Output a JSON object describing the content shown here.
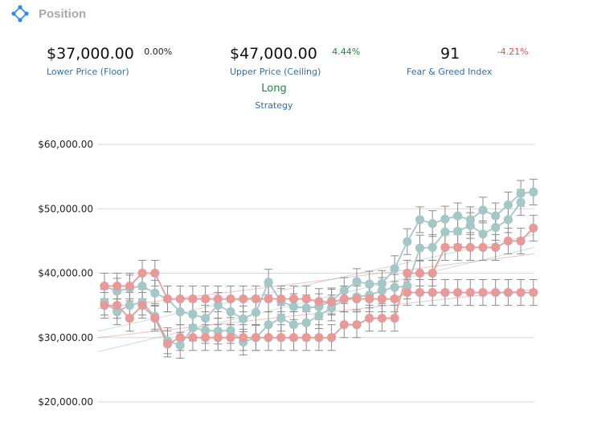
{
  "header": {
    "title": "Position",
    "logo_icon": "network-diamond-icon"
  },
  "stats": {
    "floor": {
      "value": "$37,000.00",
      "change": "0.00%",
      "label": "Lower Price (Floor)"
    },
    "ceiling": {
      "value": "$47,000.00",
      "change": "4.44%",
      "label": "Upper Price (Ceiling)"
    },
    "fear_greed": {
      "value": "91",
      "change": "-4.21%",
      "label": "Fear & Greed Index"
    }
  },
  "strategy": {
    "value": "Long",
    "label": "Strategy"
  },
  "colors": {
    "teal": "#a5c7c5",
    "pink": "#e69a9a",
    "grid": "#d7d7d7",
    "link": "#2e6db5",
    "positive": "#1e8a3a",
    "negative": "#d9534f"
  },
  "chart_data": {
    "type": "line",
    "x": [
      1,
      2,
      3,
      4,
      5,
      6,
      7,
      8,
      9,
      10,
      11,
      12,
      13,
      14,
      15,
      16,
      17,
      18,
      19,
      20,
      21,
      22,
      23,
      24,
      25,
      26,
      27,
      28,
      29,
      30,
      31,
      32,
      33,
      34,
      35,
      36
    ],
    "ylim": [
      20000,
      60000
    ],
    "yticks": [
      "$20,000.00",
      "$30,000.00",
      "$40,000.00",
      "$50,000.00",
      "$60,000.00"
    ],
    "ytick_values": [
      20000,
      30000,
      40000,
      50000,
      60000
    ],
    "error_bars": true,
    "grid": "horizontal",
    "series": [
      {
        "color": "teal",
        "values": [
          38000,
          37200,
          37700,
          38000,
          36900,
          36000,
          34000,
          33600,
          33000,
          35000,
          34000,
          32900,
          33900,
          38600,
          35600,
          34800,
          34600,
          34800,
          35700,
          37300,
          38700,
          38300,
          38400,
          40700,
          44900,
          48300,
          47700,
          48400,
          48900,
          48300,
          49800,
          48900,
          50600,
          52400,
          52600,
          null
        ]
      },
      {
        "color": "teal",
        "values": [
          35500,
          34000,
          35000,
          35500,
          33300,
          29500,
          28800,
          31500,
          31100,
          31000,
          31100,
          29300,
          30000,
          32000,
          33000,
          32000,
          32300,
          33400,
          34600,
          36000,
          36300,
          36600,
          37300,
          37800,
          38000,
          43900,
          44000,
          46400,
          46500,
          47400,
          46100,
          47100,
          48300,
          51000,
          null,
          null
        ]
      },
      {
        "color": "pink",
        "values": [
          35000,
          35000,
          33000,
          35000,
          33000,
          29000,
          30000,
          30000,
          30000,
          30000,
          30000,
          30000,
          30000,
          30000,
          30000,
          30000,
          30000,
          30000,
          30000,
          32000,
          32000,
          33000,
          33000,
          33000,
          40000,
          40000,
          40000,
          44000,
          44000,
          44000,
          44000,
          44000,
          45000,
          45000,
          47000,
          null
        ]
      },
      {
        "color": "pink",
        "values": [
          38000,
          38000,
          38000,
          40000,
          40000,
          36000,
          36000,
          36000,
          36000,
          36000,
          36000,
          36000,
          36000,
          36000,
          36000,
          36000,
          36000,
          35600,
          35500,
          36000,
          36000,
          36000,
          36000,
          36000,
          37000,
          37000,
          37000,
          37000,
          37000,
          37000,
          37000,
          37000,
          37000,
          37000,
          37000,
          null
        ]
      }
    ],
    "trendlines": [
      {
        "color": "teal",
        "from": [
          0,
          31000
        ],
        "to": [
          36,
          46000
        ]
      },
      {
        "color": "teal",
        "from": [
          0,
          27800
        ],
        "to": [
          36,
          44000
        ]
      },
      {
        "color": "pink",
        "from": [
          0,
          34500
        ],
        "to": [
          36,
          43000
        ]
      },
      {
        "color": "pink",
        "from": [
          0,
          30000
        ],
        "to": [
          36,
          37500
        ]
      }
    ]
  }
}
